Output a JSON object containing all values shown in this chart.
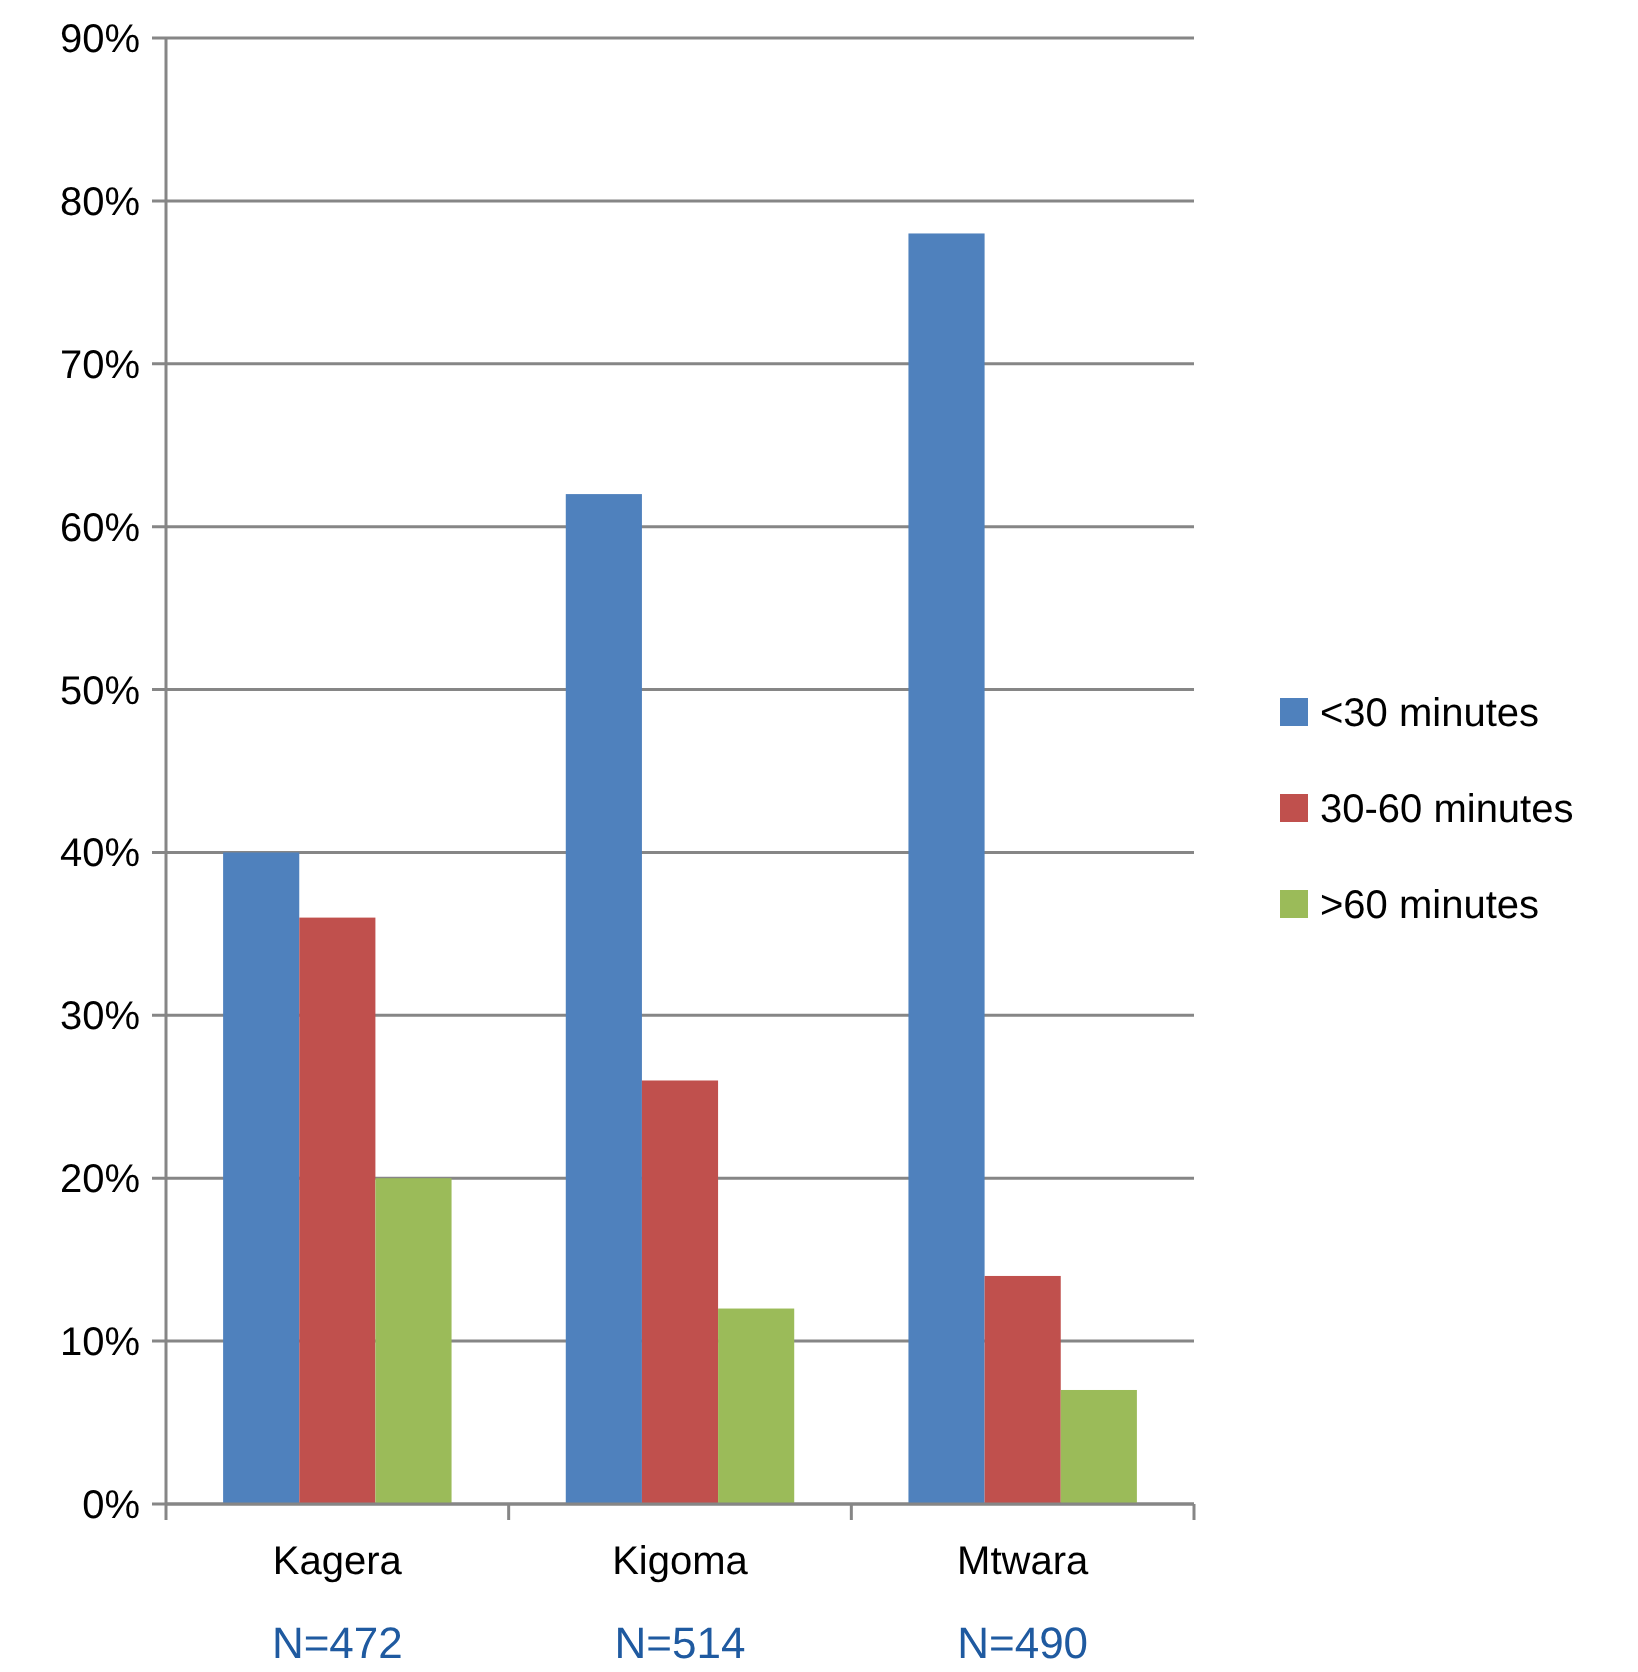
{
  "chart_data": {
    "type": "bar",
    "categories": [
      "Kagera",
      "Kigoma",
      "Mtwara"
    ],
    "series": [
      {
        "name": "<30 minutes",
        "color": "#4f81bd",
        "values": [
          40,
          62,
          78
        ]
      },
      {
        "name": "30-60 minutes",
        "color": "#c0504d",
        "values": [
          36,
          26,
          14
        ]
      },
      {
        "name": ">60 minutes",
        "color": "#9bbb59",
        "values": [
          20,
          12,
          7
        ]
      }
    ],
    "ylim": [
      0,
      90
    ],
    "yticks": [
      {
        "value": 0,
        "label": "0%"
      },
      {
        "value": 10,
        "label": "10%"
      },
      {
        "value": 20,
        "label": "20%"
      },
      {
        "value": 30,
        "label": "30%"
      },
      {
        "value": 40,
        "label": "40%"
      },
      {
        "value": 50,
        "label": "50%"
      },
      {
        "value": 60,
        "label": "60%"
      },
      {
        "value": 70,
        "label": "70%"
      },
      {
        "value": 80,
        "label": "80%"
      },
      {
        "value": 90,
        "label": "90%"
      }
    ],
    "grid": "y",
    "legend": "right",
    "annotations": [
      "N=472",
      "N=514",
      "N=490"
    ]
  }
}
